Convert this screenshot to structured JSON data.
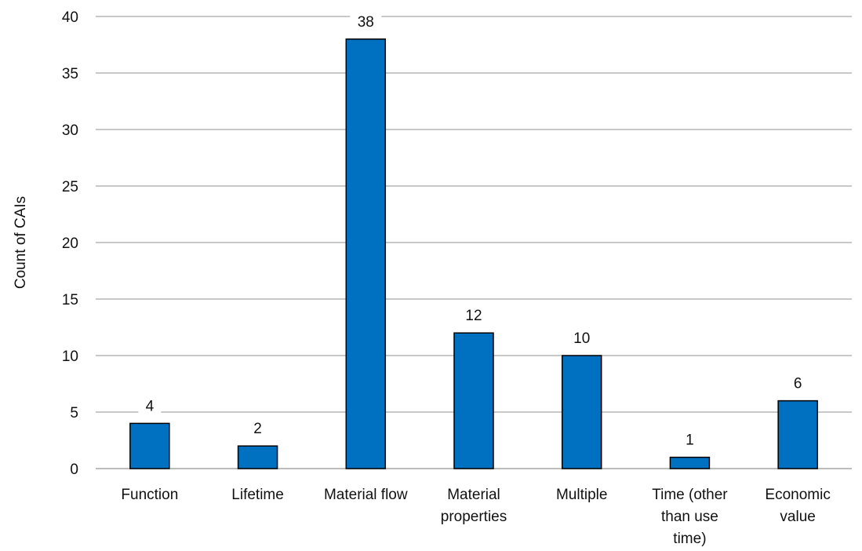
{
  "chart_data": {
    "type": "bar",
    "title": "",
    "xlabel": "",
    "ylabel": "Count of CAIs",
    "ylim": [
      0,
      40
    ],
    "yticks": [
      0,
      5,
      10,
      15,
      20,
      25,
      30,
      35,
      40
    ],
    "grid": true,
    "legend": "none",
    "categories": [
      "Function",
      "Lifetime",
      "Material flow",
      "Material properties",
      "Multiple",
      "Time (other than use time)",
      "Economic value"
    ],
    "category_lines": [
      [
        "Function"
      ],
      [
        "Lifetime"
      ],
      [
        "Material flow"
      ],
      [
        "Material",
        "properties"
      ],
      [
        "Multiple"
      ],
      [
        "Time (other",
        "than use",
        "time)"
      ],
      [
        "Economic",
        "value"
      ]
    ],
    "values": [
      4,
      2,
      38,
      12,
      10,
      1,
      6
    ],
    "bar_color": "#0070C0",
    "gridline_color": "#A6A6A6"
  }
}
